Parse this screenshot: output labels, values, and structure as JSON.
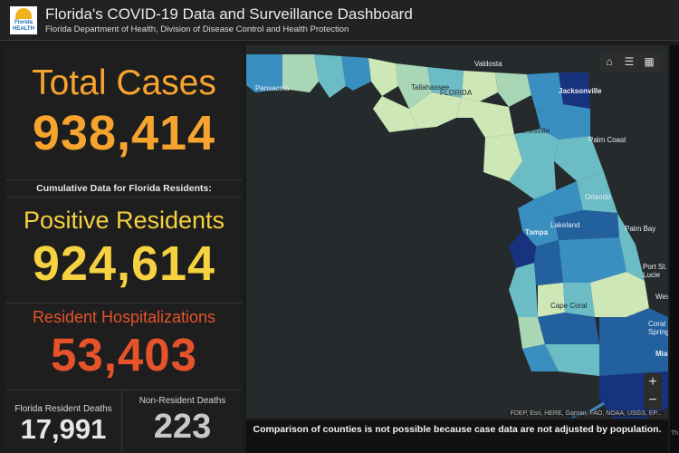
{
  "header": {
    "logo_text": "Florida HEALTH",
    "title": "Florida's COVID-19 Data and Surveillance Dashboard",
    "subtitle": "Florida Department of Health, Division of Disease Control and Health Protection"
  },
  "stats": {
    "total_cases_label": "Total Cases",
    "total_cases_value": "938,414",
    "cumulative_label": "Cumulative Data for Florida Residents:",
    "positive_label": "Positive Residents",
    "positive_value": "924,614",
    "hosp_label": "Resident Hospitalizations",
    "hosp_value": "53,403",
    "deaths_label": "Florida Resident Deaths",
    "deaths_value": "17,991",
    "nonres_label": "Non-Resident Deaths",
    "nonres_value": "223"
  },
  "map": {
    "tools": [
      "home-icon",
      "list-icon",
      "qr-icon"
    ],
    "zoom_in": "+",
    "zoom_out": "−",
    "attribution": "FDEP, Esri, HERE, Garmin, FAO, NOAA, USGS, EP...",
    "cities": {
      "pensacola": "Pensacola",
      "tallahassee": "Tallahassee",
      "florida": "FLORIDA",
      "valdosta": "Valdosta",
      "jacksonville": "Jacksonville",
      "gainesville": "Gainesville",
      "palm_coast": "Palm Coast",
      "orlando": "Orlando",
      "lakeland": "Lakeland",
      "tampa": "Tampa",
      "palm_bay": "Palm Bay",
      "port_st_lucie": "Port St. Lucie",
      "cape_coral": "Cape Coral",
      "west": "West",
      "coral_springs": "Coral Springs",
      "miami": "Miam"
    },
    "colors": {
      "background": "#252a2c",
      "light": "#cde7b6",
      "pale": "#a9d6b5",
      "mid": "#6cbcc5",
      "blue": "#3a8fc1",
      "dark": "#22609e",
      "navy": "#17327f"
    }
  },
  "note": "Comparison of counties is not possible because case data are not adjusted by population.",
  "right_strip_text": "Th"
}
